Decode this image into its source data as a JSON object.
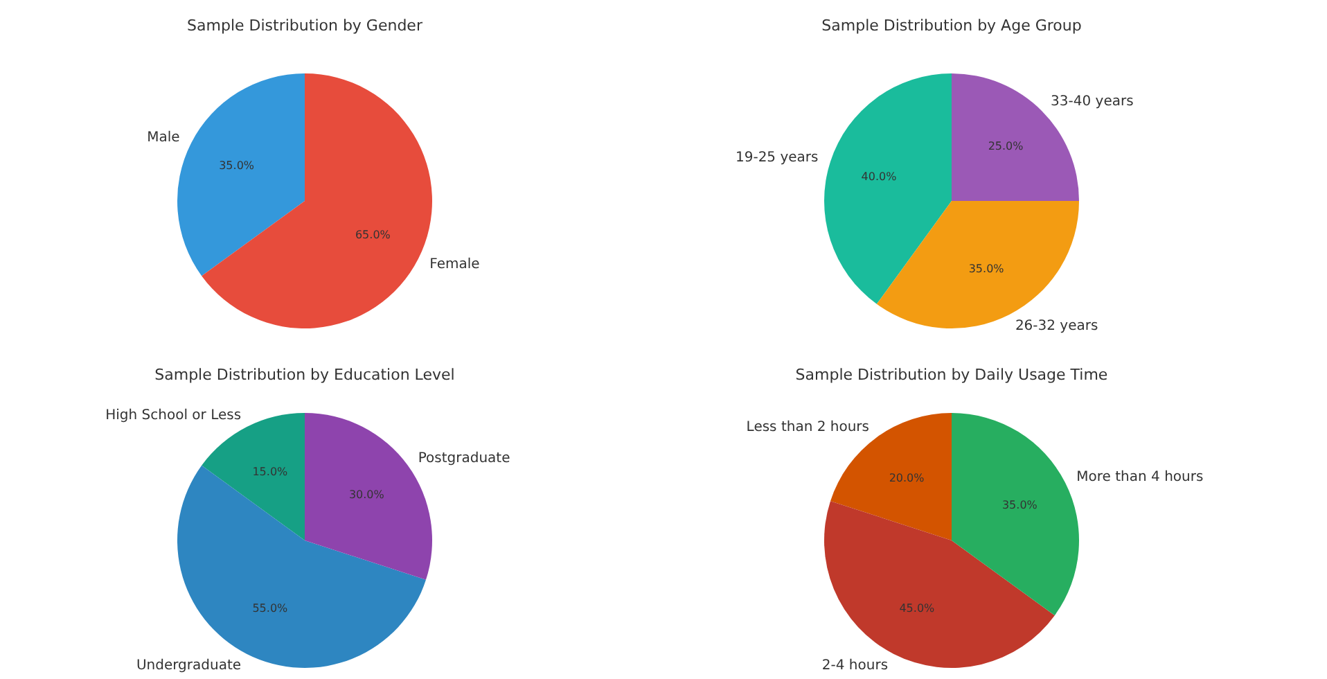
{
  "chart_data": [
    {
      "type": "pie",
      "title": "Sample Distribution by Gender",
      "categories": [
        "Male",
        "Female"
      ],
      "values": [
        35,
        65
      ],
      "colors": [
        "#3498db",
        "#e74c3c"
      ],
      "value_labels": [
        "35.0%",
        "65.0%"
      ]
    },
    {
      "type": "pie",
      "title": "Sample Distribution by Age Group",
      "categories": [
        "19-25 years",
        "26-32 years",
        "33-40 years"
      ],
      "values": [
        40,
        35,
        25
      ],
      "colors": [
        "#1abc9c",
        "#f39c12",
        "#9b59b6"
      ],
      "value_labels": [
        "40.0%",
        "35.0%",
        "25.0%"
      ]
    },
    {
      "type": "pie",
      "title": "Sample Distribution by Education Level",
      "categories": [
        "High School or Less",
        "Undergraduate",
        "Postgraduate"
      ],
      "values": [
        15,
        55,
        30
      ],
      "colors": [
        "#16a085",
        "#2e86c1",
        "#8e44ad"
      ],
      "value_labels": [
        "15.0%",
        "55.0%",
        "30.0%"
      ]
    },
    {
      "type": "pie",
      "title": "Sample Distribution by Daily Usage Time",
      "categories": [
        "Less than 2 hours",
        "2-4 hours",
        "More than 4 hours"
      ],
      "values": [
        20,
        45,
        35
      ],
      "colors": [
        "#d35400",
        "#c0392b",
        "#27ae60"
      ],
      "value_labels": [
        "20.0%",
        "45.0%",
        "35.0%"
      ]
    }
  ]
}
